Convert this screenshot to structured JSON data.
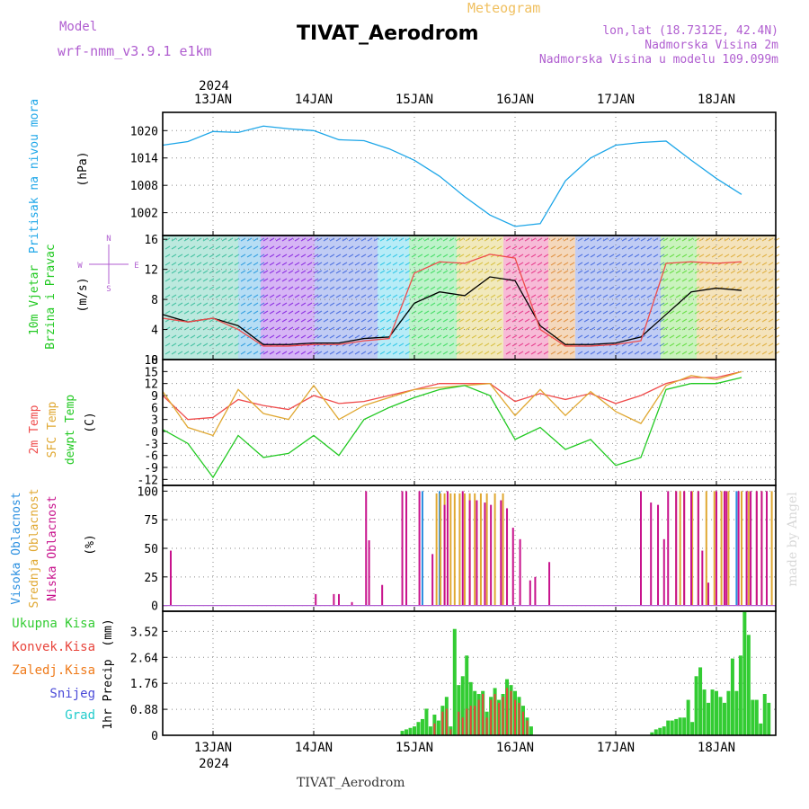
{
  "header": {
    "model_label": "Model",
    "model_value": "wrf-nmm_v3.9.1 e1km",
    "title": "TIVAT_Aerodrom",
    "subtitle": "Meteogram",
    "lonlat": "lon,lat (18.7312E, 42.4N)",
    "altitude": "Nadmorska Visina 2m",
    "model_altitude": "Nadmorska Visina u modelu 109.099m",
    "footer": "TIVAT_Aerodrom",
    "credit": "made by Angel"
  },
  "colors": {
    "pressure": "#1da6e8",
    "wind_speed": "#000000",
    "temp_2m": "#ef4b4b",
    "temp_sfc": "#e0a832",
    "dewpoint": "#22c922",
    "cloud_high": "#2a8fe0",
    "cloud_mid": "#e0a832",
    "cloud_low": "#c8128c",
    "precip_total": "#33cc33",
    "precip_conv": "#e8453c",
    "precip_frozen": "#ef7a1a",
    "precip_snow": "#4b4bd8",
    "precip_hail": "#22cccc"
  },
  "time_axis": {
    "year_label": "2024",
    "days": [
      "13JAN",
      "14JAN",
      "15JAN",
      "16JAN",
      "17JAN",
      "18JAN"
    ]
  },
  "chart_data": [
    {
      "type": "line",
      "name": "pressure",
      "ylabel": "Pritisak na nivou mora",
      "unit": "(hPa)",
      "yticks": [
        1002,
        1008,
        1014,
        1020
      ],
      "ylim": [
        997,
        1024
      ],
      "x_days": [
        0,
        0.25,
        0.5,
        0.75,
        1.0,
        1.25,
        1.5,
        1.75,
        2.0,
        2.25,
        2.5,
        2.75,
        3.0,
        3.25,
        3.5,
        3.75,
        4.0,
        4.25,
        4.5,
        4.75,
        5.0,
        5.25,
        5.5,
        5.75
      ],
      "series": [
        {
          "values": [
            1016.8,
            1017.6,
            1019.8,
            1019.6,
            1021.0,
            1020.4,
            1020.0,
            1018.0,
            1017.8,
            1016.0,
            1013.5,
            1010.0,
            1005.5,
            1001.5,
            999.0,
            999.6,
            1009.0,
            1014.0,
            1016.8,
            1017.4,
            1017.7,
            1013.5,
            1009.5,
            1006.0
          ]
        }
      ]
    },
    {
      "type": "line",
      "name": "wind",
      "ylabel": "10m Vjetar Brzina i Pravac",
      "unit": "(m/s)",
      "yticks": [
        0,
        4,
        8,
        12,
        16
      ],
      "ylim": [
        0,
        16.5
      ],
      "direction_legend": [
        "N",
        "E",
        "S",
        "W"
      ],
      "x_days": [
        0,
        0.25,
        0.5,
        0.75,
        1.0,
        1.25,
        1.5,
        1.75,
        2.0,
        2.25,
        2.5,
        2.75,
        3.0,
        3.25,
        3.5,
        3.75,
        4.0,
        4.25,
        4.5,
        4.75,
        5.0,
        5.25,
        5.5,
        5.75
      ],
      "series": [
        {
          "values": [
            6.0,
            5.0,
            5.5,
            4.5,
            2.0,
            2.0,
            2.2,
            2.2,
            2.8,
            3.0,
            7.5,
            9.0,
            8.5,
            11.0,
            10.5,
            4.5,
            2.0,
            2.0,
            2.2,
            3.0,
            6.0,
            9.0,
            9.5,
            9.2
          ]
        },
        {
          "values": [
            5.5,
            5.0,
            5.5,
            4.0,
            1.8,
            1.8,
            2.0,
            2.0,
            2.5,
            2.8,
            11.5,
            13.0,
            12.8,
            14.0,
            13.5,
            4.0,
            1.8,
            1.8,
            2.0,
            2.5,
            12.8,
            13.0,
            12.8,
            13.0
          ]
        }
      ]
    },
    {
      "type": "line",
      "name": "temperature",
      "ylabel": "2m Temp SFC Temp dewpt Temp",
      "unit": "(C)",
      "yticks": [
        -12,
        -9,
        -6,
        -3,
        0,
        3,
        6,
        9,
        12,
        15,
        18
      ],
      "ylim": [
        -13.5,
        18
      ],
      "x_days": [
        0,
        0.25,
        0.5,
        0.75,
        1.0,
        1.25,
        1.5,
        1.75,
        2.0,
        2.25,
        2.5,
        2.75,
        3.0,
        3.25,
        3.5,
        3.75,
        4.0,
        4.25,
        4.5,
        4.75,
        5.0,
        5.25,
        5.5,
        5.75
      ],
      "series": [
        {
          "name": "2m Temp",
          "values": [
            9.0,
            3.0,
            3.5,
            8.0,
            6.5,
            5.5,
            9.0,
            7.0,
            7.5,
            9.0,
            10.5,
            12.0,
            12.0,
            12.0,
            7.5,
            9.5,
            8.0,
            9.5,
            7.0,
            9.0,
            12.0,
            13.5,
            13.5,
            15.0
          ]
        },
        {
          "name": "SFC Temp",
          "values": [
            10.0,
            1.0,
            -1.0,
            10.5,
            4.5,
            3.0,
            11.5,
            3.0,
            6.5,
            8.5,
            10.5,
            11.0,
            11.5,
            12.0,
            4.0,
            10.5,
            4.0,
            10.0,
            5.0,
            2.0,
            11.5,
            14.0,
            13.0,
            15.0
          ]
        },
        {
          "name": "dewpt Temp",
          "values": [
            0.5,
            -3.0,
            -11.5,
            -1.0,
            -6.5,
            -5.5,
            -1.0,
            -6.0,
            3.0,
            6.0,
            8.5,
            10.5,
            11.5,
            9.0,
            -2.0,
            1.0,
            -4.5,
            -2.0,
            -8.5,
            -6.5,
            10.5,
            12.0,
            12.0,
            13.5
          ]
        }
      ]
    },
    {
      "type": "bar",
      "name": "clouds",
      "ylabel": "Visoka Oblacnost Srednja Oblacnost Niska Oblacnost",
      "unit": "(%)",
      "yticks": [
        0,
        25,
        50,
        75,
        100
      ],
      "ylim": [
        -5,
        105
      ],
      "series": [
        {
          "name": "Visoka Oblacnost",
          "x_days": [
            2.08,
            2.25,
            4.5,
            4.72,
            5.2,
            5.5
          ],
          "values": [
            100,
            100,
            0,
            0,
            100,
            100
          ]
        },
        {
          "name": "Srednja Oblacnost",
          "x_days": [
            2.22,
            2.26,
            2.3,
            2.36,
            2.4,
            2.45,
            2.5,
            2.55,
            2.6,
            2.66,
            2.72,
            2.8,
            2.88,
            4.6,
            4.64,
            4.68,
            4.76,
            4.82,
            4.9,
            4.98,
            5.05,
            5.12,
            5.25,
            5.32,
            5.4,
            5.45,
            5.5,
            5.55
          ],
          "values": [
            98,
            98,
            98,
            98,
            98,
            98,
            98,
            98,
            98,
            98,
            98,
            98,
            98,
            100,
            100,
            100,
            100,
            100,
            100,
            100,
            100,
            100,
            100,
            100,
            100,
            100,
            100,
            100
          ]
        },
        {
          "name": "Niska Oblacnost",
          "x_days": [
            -0.42,
            1.02,
            1.2,
            1.25,
            1.38,
            1.52,
            1.55,
            1.68,
            1.88,
            1.92,
            2.05,
            2.18,
            2.3,
            2.33,
            2.48,
            2.55,
            2.62,
            2.7,
            2.76,
            2.86,
            2.92,
            2.98,
            3.05,
            3.15,
            3.2,
            3.34,
            4.25,
            4.35,
            4.42,
            4.48,
            4.52,
            4.6,
            4.68,
            4.75,
            4.82,
            4.86,
            4.92,
            5.0,
            5.08,
            5.1,
            5.22,
            5.3,
            5.34,
            5.4,
            5.45,
            5.5
          ],
          "values": [
            48,
            10,
            10,
            10,
            3,
            100,
            57,
            18,
            100,
            100,
            100,
            45,
            88,
            100,
            100,
            92,
            92,
            90,
            88,
            92,
            85,
            68,
            58,
            22,
            25,
            38,
            100,
            90,
            88,
            58,
            100,
            100,
            100,
            100,
            100,
            48,
            20,
            100,
            100,
            100,
            100,
            100,
            100,
            100,
            100,
            100
          ]
        }
      ]
    },
    {
      "type": "bar",
      "name": "precipitation",
      "ylabel": "1hr Precip",
      "unit": "(mm)",
      "yticks": [
        0,
        0.88,
        1.76,
        2.64,
        3.52
      ],
      "ylim": [
        0,
        4.2
      ],
      "legend": [
        "Ukupna Kisa",
        "Konvek.Kisa",
        "Zaledj.Kisa",
        "Snijeg",
        "Grad"
      ],
      "series": [
        {
          "name": "Ukupna Kisa",
          "x_days": [
            1.88,
            1.92,
            1.96,
            2.0,
            2.04,
            2.08,
            2.12,
            2.16,
            2.2,
            2.24,
            2.28,
            2.32,
            2.36,
            2.4,
            2.44,
            2.48,
            2.52,
            2.56,
            2.6,
            2.64,
            2.68,
            2.72,
            2.76,
            2.8,
            2.84,
            2.88,
            2.92,
            2.96,
            3.0,
            3.04,
            3.08,
            3.12,
            3.16,
            4.36,
            4.4,
            4.44,
            4.48,
            4.52,
            4.56,
            4.6,
            4.64,
            4.68,
            4.72,
            4.76,
            4.8,
            4.84,
            4.88,
            4.92,
            4.96,
            5.0,
            5.04,
            5.08,
            5.12,
            5.16,
            5.2,
            5.24,
            5.28,
            5.32,
            5.36,
            5.4,
            5.44,
            5.48,
            5.52
          ],
          "values": [
            0.15,
            0.2,
            0.25,
            0.3,
            0.45,
            0.55,
            0.9,
            0.3,
            0.7,
            0.5,
            1.0,
            1.3,
            0.3,
            3.6,
            1.7,
            2.0,
            2.7,
            1.8,
            1.5,
            1.4,
            1.5,
            0.8,
            1.3,
            1.6,
            1.2,
            1.4,
            1.9,
            1.7,
            1.5,
            1.3,
            1.0,
            0.6,
            0.3,
            0.1,
            0.2,
            0.25,
            0.3,
            0.5,
            0.5,
            0.55,
            0.6,
            0.6,
            1.2,
            0.45,
            2.0,
            2.3,
            1.55,
            1.1,
            1.55,
            1.5,
            1.3,
            1.1,
            1.5,
            2.6,
            1.5,
            2.7,
            4.2,
            3.4,
            1.2,
            1.2,
            0.4,
            1.4,
            1.1
          ]
        },
        {
          "name": "Konvek.Kisa",
          "x_days": [
            2.2,
            2.28,
            2.32,
            2.36,
            2.44,
            2.48,
            2.52,
            2.56,
            2.6,
            2.64,
            2.68,
            2.72,
            2.76,
            2.8,
            2.84,
            2.88,
            2.92,
            2.96,
            3.0,
            3.04,
            3.08,
            3.12
          ],
          "values": [
            0.4,
            0.8,
            0.9,
            0.2,
            0.8,
            0.6,
            0.9,
            1.0,
            1.0,
            1.2,
            1.4,
            0.6,
            1.2,
            1.4,
            1.1,
            1.3,
            1.6,
            1.5,
            1.2,
            1.1,
            0.8,
            0.5
          ]
        }
      ]
    }
  ]
}
